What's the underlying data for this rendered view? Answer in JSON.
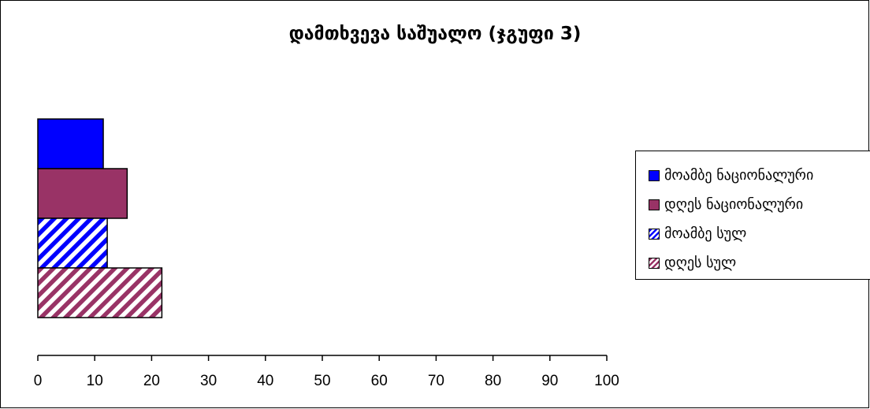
{
  "chart_data": {
    "type": "bar",
    "orientation": "horizontal",
    "title": "დამთხვევა საშუალო (ჯგუფი 3)",
    "xlabel": "",
    "ylabel": "",
    "xlim": [
      0,
      100
    ],
    "x_ticks": [
      "0",
      "10",
      "20",
      "30",
      "40",
      "50",
      "60",
      "70",
      "80",
      "90",
      "100"
    ],
    "grid": false,
    "legend_position": "right",
    "series": [
      {
        "name": "მოამბე ნაციონალური",
        "values": [
          11.5
        ],
        "color": "#0000ff",
        "pattern": "solid"
      },
      {
        "name": "დღეს ნაციონალური",
        "values": [
          15.7
        ],
        "color": "#993366",
        "pattern": "solid"
      },
      {
        "name": "მოამბე სულ",
        "values": [
          12.2
        ],
        "color": "#0000ff",
        "pattern": "diagonal-stripes"
      },
      {
        "name": "დღეს სულ",
        "values": [
          21.8
        ],
        "color": "#993366",
        "pattern": "diagonal-stripes"
      }
    ]
  }
}
